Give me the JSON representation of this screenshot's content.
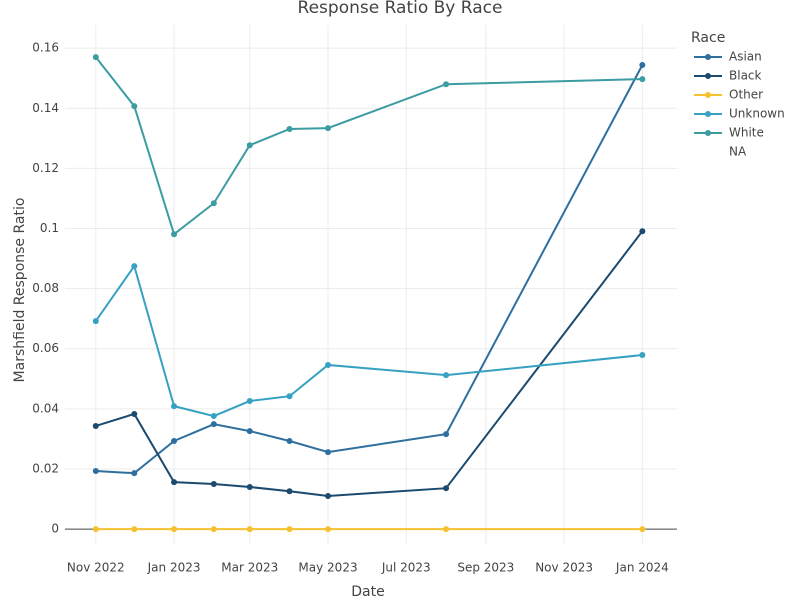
{
  "chart_data": {
    "type": "line",
    "title": "Response Ratio By Race",
    "x_label": "Date",
    "y_label": "Marshfield Response Ratio",
    "legend_title": "Race",
    "legend": "right",
    "grid": true,
    "x": [
      "2022-11",
      "2022-12",
      "2023-01",
      "2023-02",
      "2023-03",
      "2023-04",
      "2023-05",
      "2023-08",
      "2024-01"
    ],
    "xlim": [
      "2022-10-08",
      "2024-01-28"
    ],
    "xticks": [
      {
        "value": "2022-11",
        "label": "Nov 2022"
      },
      {
        "value": "2023-01",
        "label": "Jan 2023"
      },
      {
        "value": "2023-03",
        "label": "Mar 2023"
      },
      {
        "value": "2023-05",
        "label": "May 2023"
      },
      {
        "value": "2023-07",
        "label": "Jul 2023"
      },
      {
        "value": "2023-09",
        "label": "Sep 2023"
      },
      {
        "value": "2023-11",
        "label": "Nov 2023"
      },
      {
        "value": "2024-01",
        "label": "Jan 2024"
      }
    ],
    "ylim": [
      -0.0053,
      0.1677
    ],
    "yticks": [
      0,
      0.02,
      0.04,
      0.06,
      0.08,
      0.1,
      0.12,
      0.14,
      0.16
    ],
    "series": [
      {
        "name": "Asian",
        "color": "#2e6f9e",
        "values": [
          0.0193,
          0.0186,
          0.0293,
          0.0349,
          0.0326,
          0.0293,
          0.0256,
          0.0316,
          0.1544
        ]
      },
      {
        "name": "Black",
        "color": "#1b4a6e",
        "values": [
          0.0343,
          0.0383,
          0.0156,
          0.015,
          0.014,
          0.0126,
          0.011,
          0.0136,
          0.0991
        ]
      },
      {
        "name": "Other",
        "color": "#f6c12e",
        "values": [
          0,
          0,
          0,
          0,
          0,
          0,
          0,
          0,
          0
        ]
      },
      {
        "name": "Unknown",
        "color": "#36a1c1",
        "values": [
          0.0692,
          0.0875,
          0.0409,
          0.0376,
          0.0426,
          0.0442,
          0.0546,
          0.0512,
          0.0579
        ]
      },
      {
        "name": "White",
        "color": "#3b9ca1",
        "values": [
          0.157,
          0.1407,
          0.0981,
          0.1084,
          0.1277,
          0.1331,
          0.1334,
          0.148,
          0.1497
        ]
      },
      {
        "name": "NA",
        "color": null,
        "values": [
          null,
          null,
          null,
          null,
          null,
          null,
          null,
          null,
          null
        ]
      }
    ]
  }
}
